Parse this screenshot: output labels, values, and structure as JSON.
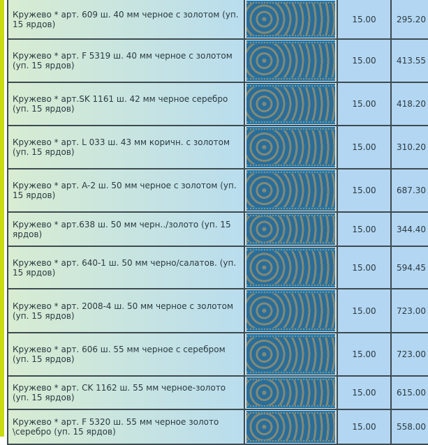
{
  "accent_bar_color": "#c9dc12",
  "rows": [
    {
      "name": "Кружево * арт. 609 ш. 40 мм черное с золотом (уп. 15 ярдов)",
      "image": "lace-ribbon-image",
      "qty": "15.00",
      "price": "295.20"
    },
    {
      "name": "Кружево * арт. F 5319 ш. 40 мм черное с золотом (уп. 15 ярдов)",
      "image": "lace-ribbon-image",
      "qty": "15.00",
      "price": "413.55"
    },
    {
      "name": "Кружево * арт.SK 1161 ш. 42 мм черное серебро (уп. 15 ярдов)",
      "image": "lace-ribbon-image",
      "qty": "15.00",
      "price": "418.20"
    },
    {
      "name": "Кружево * арт. L 033 ш. 43 мм коричн. с золотом (уп. 15 ярдов)",
      "image": "lace-ribbon-image",
      "qty": "15.00",
      "price": "310.20"
    },
    {
      "name": "Кружево * арт. A-2 ш. 50 мм черное с золотом (уп. 15 ярдов)",
      "image": "lace-ribbon-image",
      "qty": "15.00",
      "price": "687.30"
    },
    {
      "name": "Кружево * арт.638 ш. 50 мм черн../золото (уп. 15 ярдов)",
      "image": "lace-ribbon-image",
      "qty": "15.00",
      "price": "344.40"
    },
    {
      "name": "Кружево * арт. 640-1 ш. 50 мм черно/салатов. (уп. 15 ярдов)",
      "image": "lace-ribbon-image",
      "qty": "15.00",
      "price": "594.45"
    },
    {
      "name": "Кружево * арт. 2008-4 ш. 50 мм черное с золотом (уп. 15 ярдов)",
      "image": "lace-ribbon-image",
      "qty": "15.00",
      "price": "723.00"
    },
    {
      "name": "Кружево * арт. 606 ш. 55 мм черное с серебром (уп. 15 ярдов)",
      "image": "lace-ribbon-image",
      "qty": "15.00",
      "price": "723.00"
    },
    {
      "name": "Кружево * арт. CK 1162 ш. 55 мм черное-золото (уп. 15 ярдов)",
      "image": "lace-ribbon-image",
      "qty": "15.00",
      "price": "615.00"
    },
    {
      "name": "Кружево * арт. F 5320 ш. 55 мм черное золото \\серебро (уп. 15 ярдов)",
      "image": "lace-ribbon-image",
      "qty": "15.00",
      "price": "558.00"
    }
  ]
}
